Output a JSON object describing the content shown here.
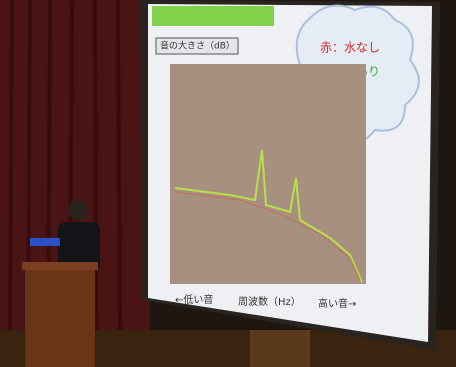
{
  "screen": {
    "y_axis_label": "音の大きさ（dB）",
    "legend": [
      "赤：水なし",
      "緑：水あり"
    ],
    "x_axis_labels": [
      "←低い音",
      "周波数（Hz）",
      "高い音→"
    ]
  }
}
